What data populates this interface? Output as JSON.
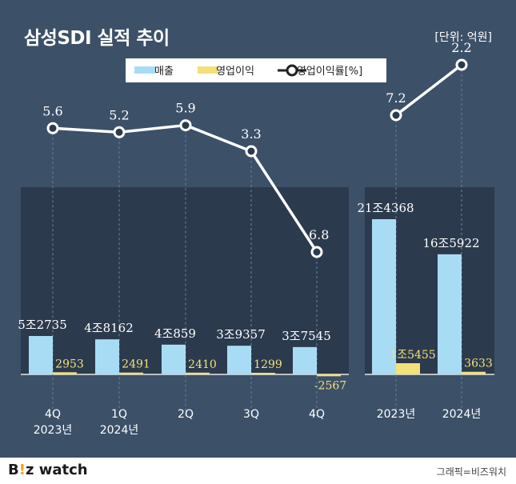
{
  "title": "삼성SDI 실적 추이",
  "unit_label": "[단위: 억원]",
  "footer": {
    "logo_part1": "B",
    "logo_accent": "!",
    "logo_part2": "z watch",
    "credit": "그래픽=비즈워치"
  },
  "colors": {
    "background": "#3c5068",
    "panel": "#2c3a4d",
    "revenue": "#a8dcf4",
    "operating_profit": "#f2e07a",
    "line": "#ffffff"
  },
  "chart_data": [
    {
      "type": "bar",
      "panel": "quarterly",
      "categories": [
        "4Q\n2023년",
        "1Q\n2024년",
        "2Q",
        "3Q",
        "4Q"
      ],
      "series": [
        {
          "name": "매출",
          "values": [
            52735,
            48162,
            40859,
            39357,
            37545
          ],
          "labels": [
            "5조2735",
            "4조8162",
            "4조859",
            "3조9357",
            "3조7545"
          ]
        },
        {
          "name": "영업이익",
          "values": [
            2953,
            2491,
            2410,
            1299,
            -2567
          ],
          "labels": [
            "2953",
            "2491",
            "2410",
            "1299",
            "-2567"
          ]
        },
        {
          "name": "영업이익률[%]",
          "values": [
            5.6,
            5.2,
            5.9,
            3.3,
            -6.8
          ],
          "labels": [
            "5.6",
            "5.2",
            "5.9",
            "3.3",
            "-6.8"
          ],
          "mark": "line"
        }
      ]
    },
    {
      "type": "bar",
      "panel": "annual",
      "categories": [
        "2023년",
        "2024년"
      ],
      "series": [
        {
          "name": "매출",
          "values": [
            214368,
            165922
          ],
          "labels": [
            "21조4368",
            "16조5922"
          ]
        },
        {
          "name": "영업이익",
          "values": [
            15455,
            3633
          ],
          "labels": [
            "1조5455",
            "3633"
          ]
        },
        {
          "name": "영업이익률[%]",
          "values": [
            7.2,
            2.2
          ],
          "labels": [
            "7.2",
            "2.2"
          ],
          "mark": "line"
        }
      ]
    }
  ]
}
